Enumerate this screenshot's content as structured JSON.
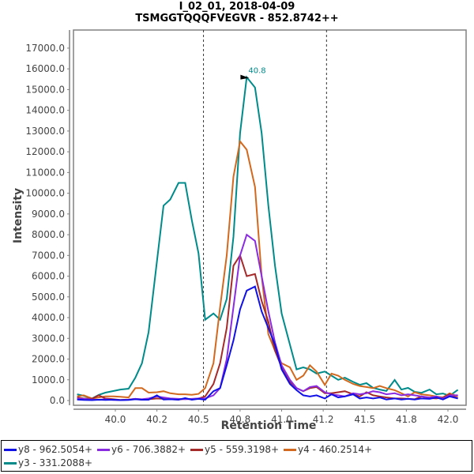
{
  "header": {
    "title_line1": "I_02_01, 2018-04-09",
    "title_line2": "TSMGGTQQQFVEGVR - 852.8742++"
  },
  "axes": {
    "xlabel": "Retention Time",
    "ylabel": "Intensity"
  },
  "legend": {
    "items": [
      {
        "label": "y8 - 962.5054+",
        "color": "#1010e8"
      },
      {
        "label": "y6 - 706.3882+",
        "color": "#8a2be2"
      },
      {
        "label": "y5 - 559.3198+",
        "color": "#a52a2a"
      },
      {
        "label": "y4 - 460.2514+",
        "color": "#d2691e"
      },
      {
        "label": "y3 - 331.2088+",
        "color": "#008b8b"
      }
    ]
  },
  "annotation": {
    "peak_label": "40.8",
    "peak_rt": 40.8,
    "peak_intensity": 15600,
    "boundaries": [
      40.53,
      41.27
    ]
  },
  "chart_data": {
    "type": "line",
    "title": "I_02_01, 2018-04-09 / TSMGGTQQQFVEGVR - 852.8742++",
    "xlabel": "Retention Time",
    "ylabel": "Intensity",
    "xlim": [
      39.77,
      42.1
    ],
    "ylim": [
      0,
      17600
    ],
    "x_ticks": [
      "40.0",
      "40.2",
      "40.5",
      "40.8",
      "41.0",
      "41.2",
      "41.5",
      "41.8",
      "42.0"
    ],
    "x_tick_values": [
      40.0,
      40.25,
      40.5,
      40.75,
      41.0,
      41.25,
      41.5,
      41.75,
      42.0
    ],
    "y_ticks": [
      "0.0",
      "1000.0",
      "2000.0",
      "3000.0",
      "4000.0",
      "5000.0",
      "6000.0",
      "7000.0",
      "8000.0",
      "9000.0",
      "10000.0",
      "11000.0",
      "12000.0",
      "13000.0",
      "14000.0",
      "15000.0",
      "16000.0",
      "17000.0"
    ],
    "grid": false,
    "legend_position": "bottom",
    "x": [
      39.77,
      39.81,
      39.86,
      39.9,
      39.94,
      39.99,
      40.03,
      40.08,
      40.12,
      40.16,
      40.2,
      40.25,
      40.29,
      40.33,
      40.38,
      40.42,
      40.46,
      40.5,
      40.54,
      40.59,
      40.63,
      40.67,
      40.71,
      40.75,
      40.79,
      40.84,
      40.88,
      40.92,
      40.96,
      41.0,
      41.05,
      41.09,
      41.13,
      41.17,
      41.21,
      41.26,
      41.3,
      41.34,
      41.38,
      41.43,
      41.47,
      41.51,
      41.55,
      41.59,
      41.63,
      41.68,
      41.72,
      41.76,
      41.8,
      41.84,
      41.89,
      41.93,
      41.97,
      42.01,
      42.06
    ],
    "series": [
      {
        "name": "y8 - 962.5054+",
        "values": [
          50,
          30,
          20,
          40,
          30,
          40,
          20,
          30,
          60,
          40,
          40,
          250,
          50,
          60,
          40,
          120,
          40,
          80,
          40,
          450,
          600,
          1700,
          2900,
          4400,
          5300,
          5500,
          4300,
          3500,
          2700,
          1500,
          800,
          500,
          250,
          200,
          250,
          100,
          300,
          150,
          200,
          300,
          100,
          150,
          100,
          150,
          50,
          100,
          50,
          80,
          50,
          100,
          80,
          150,
          50,
          200,
          100
        ]
      },
      {
        "name": "y6 - 706.3882+",
        "values": [
          100,
          80,
          50,
          40,
          60,
          30,
          20,
          40,
          80,
          60,
          100,
          200,
          150,
          100,
          80,
          60,
          80,
          100,
          100,
          250,
          600,
          2000,
          4500,
          7000,
          8000,
          7700,
          6000,
          4300,
          2800,
          1700,
          1000,
          600,
          450,
          650,
          700,
          400,
          300,
          250,
          200,
          350,
          300,
          350,
          450,
          400,
          300,
          350,
          250,
          300,
          250,
          200,
          150,
          200,
          100,
          250,
          250
        ]
      },
      {
        "name": "y5 - 559.3198+",
        "values": [
          150,
          100,
          80,
          250,
          100,
          60,
          30,
          50,
          80,
          40,
          60,
          100,
          80,
          60,
          50,
          80,
          60,
          100,
          200,
          800,
          1800,
          3500,
          6500,
          7000,
          6000,
          6100,
          4800,
          3800,
          2400,
          1600,
          900,
          600,
          450,
          600,
          650,
          350,
          350,
          400,
          450,
          300,
          200,
          400,
          250,
          200,
          150,
          100,
          100,
          80,
          60,
          200,
          120,
          100,
          150,
          300,
          100
        ]
      },
      {
        "name": "y4 - 460.2514+",
        "values": [
          200,
          250,
          100,
          150,
          200,
          200,
          180,
          150,
          600,
          600,
          380,
          400,
          450,
          350,
          300,
          300,
          280,
          320,
          600,
          1800,
          4500,
          7000,
          10800,
          12500,
          12100,
          10300,
          6000,
          3200,
          2400,
          1800,
          1600,
          1000,
          1200,
          1700,
          1400,
          750,
          1300,
          1200,
          1000,
          800,
          700,
          650,
          600,
          700,
          600,
          500,
          350,
          200,
          400,
          300,
          250,
          200,
          150,
          350,
          200
        ]
      },
      {
        "name": "y3 - 331.2088+",
        "values": [
          300,
          230,
          100,
          270,
          380,
          460,
          530,
          570,
          1100,
          1800,
          3300,
          6700,
          9400,
          9700,
          10500,
          10500,
          8700,
          7100,
          3900,
          4200,
          3900,
          4900,
          7900,
          12900,
          15600,
          15100,
          12900,
          9400,
          6500,
          4200,
          2700,
          1500,
          1600,
          1500,
          1300,
          1400,
          1200,
          1000,
          1100,
          900,
          760,
          840,
          610,
          530,
          460,
          990,
          530,
          610,
          420,
          370,
          530,
          300,
          340,
          230,
          520
        ]
      }
    ]
  }
}
